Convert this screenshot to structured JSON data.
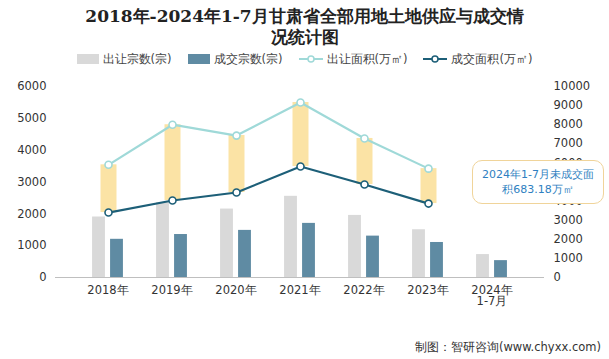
{
  "chart_data": {
    "type": "combo",
    "title": "2018年-2024年1-7月甘肃省全部用地土地供应与成交情况统计图",
    "categories": [
      "2018年",
      "2019年",
      "2020年",
      "2021年",
      "2022年",
      "2023年",
      "2024年\n1-7月"
    ],
    "series": [
      {
        "name": "出让宗数(宗)",
        "type": "bar",
        "color": "#d9d9d9",
        "values": [
          1900,
          2350,
          2150,
          2550,
          1950,
          1500,
          720
        ]
      },
      {
        "name": "成交宗数(宗)",
        "type": "bar",
        "color": "#5f8ba3",
        "values": [
          1200,
          1350,
          1480,
          1700,
          1300,
          1100,
          530
        ]
      },
      {
        "name": "出让面积(万㎡)",
        "type": "line",
        "axis": "y2",
        "color": "#9fd9d8",
        "marker": "circle",
        "values": [
          5900,
          8000,
          7430,
          9160,
          7280,
          5700,
          null
        ]
      },
      {
        "name": "成交面积(万㎡)",
        "type": "line",
        "axis": "y2",
        "color": "#1d5f78",
        "marker": "circle",
        "values": [
          3400,
          4030,
          4450,
          5810,
          4870,
          3870,
          null
        ]
      }
    ],
    "ylim": [
      0,
      6000
    ],
    "yticks": [
      0,
      1000,
      2000,
      3000,
      4000,
      5000,
      6000
    ],
    "y2lim": [
      0,
      10000
    ],
    "y2ticks": [
      0,
      1000,
      2000,
      3000,
      4000,
      5000,
      6000,
      7000,
      8000,
      9000,
      10000
    ],
    "grid": false,
    "legend": "top",
    "annotations": [
      "2024年1-7月未成交面积683.18万㎡"
    ],
    "source": "制图：智研咨询(www.chyxx.com)"
  }
}
